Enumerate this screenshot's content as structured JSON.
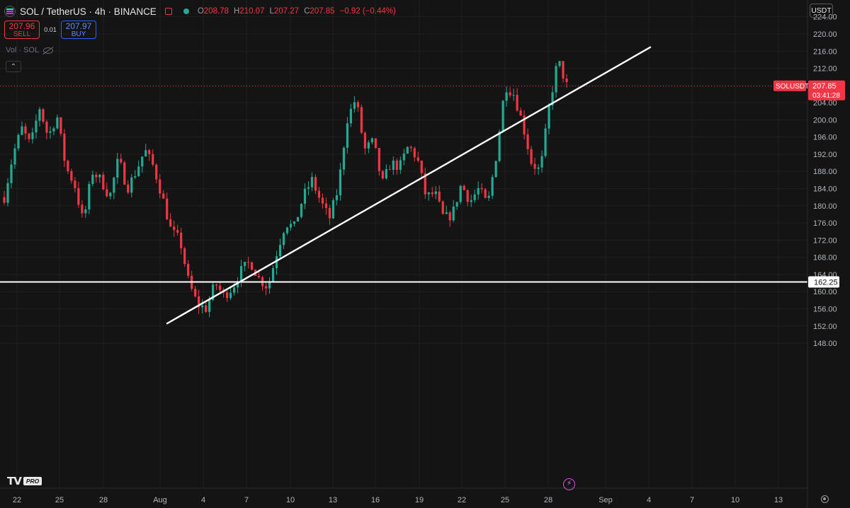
{
  "header": {
    "symbol_title": "SOL / TetherUS · 4h · BINANCE",
    "ohlc": {
      "o_label": "O",
      "o": "208.78",
      "h_label": "H",
      "h": "210.07",
      "l_label": "L",
      "l": "207.27",
      "c_label": "C",
      "c": "207.85",
      "change": "−0.92 (−0.44%)"
    }
  },
  "trade": {
    "sell_price": "207.96",
    "sell_label": "SELL",
    "spread": "0.01",
    "buy_price": "207.97",
    "buy_label": "BUY"
  },
  "indicator": {
    "volume_label": "Vol · SOL"
  },
  "currency_button": "USDT",
  "branding": {
    "logo": "TV",
    "badge": "PRO"
  },
  "icons": {
    "symbol": "solana-logo-icon",
    "flag": "flag-icon",
    "status": "market-open-dot-icon",
    "visibility": "eye-off-icon",
    "collapse": "chevron-up-icon",
    "settings": "gear-icon",
    "alert": "lightning-icon"
  },
  "colors": {
    "background": "#141414",
    "up": "#22ab94",
    "down": "#f23645",
    "buy": "#2962ff",
    "drawing": "#ffffff"
  },
  "chart_data": {
    "type": "candlestick",
    "symbol": "SOLUSDT",
    "interval": "4h",
    "y_ticks": [
      148,
      152,
      156,
      160,
      164,
      168,
      172,
      176,
      180,
      184,
      188,
      192,
      196,
      200,
      204,
      208,
      212,
      216,
      220,
      224
    ],
    "y_tick_labels": [
      "148.00",
      "152.00",
      "156.00",
      "160.00",
      "164.00",
      "168.00",
      "172.00",
      "176.00",
      "180.00",
      "184.00",
      "188.00",
      "192.00",
      "196.00",
      "200.00",
      "204.00",
      "208.00",
      "212.00",
      "216.00",
      "220.00",
      "224.00"
    ],
    "ylim": [
      146,
      226
    ],
    "x_tick_labels": [
      "22",
      "25",
      "28",
      "Aug",
      "4",
      "7",
      "10",
      "13",
      "16",
      "19",
      "22",
      "25",
      "28",
      "Sep",
      "4",
      "7",
      "10",
      "13"
    ],
    "last_price": {
      "symbol_label": "SOLUSDT",
      "value": 207.85,
      "value_label": "207.85",
      "countdown": "03:41:28"
    },
    "horizontal_line": {
      "value": 162.25,
      "label": "162.25"
    },
    "trendline": {
      "start": [
        "Aug 2",
        152.6
      ],
      "end": [
        "Sep 4",
        216.9
      ]
    },
    "path": [
      [
        0,
        182
      ],
      [
        2,
        192
      ],
      [
        4,
        198
      ],
      [
        6,
        194
      ],
      [
        8,
        203
      ],
      [
        10,
        196
      ],
      [
        12,
        201
      ],
      [
        14,
        189
      ],
      [
        16,
        185
      ],
      [
        18,
        176
      ],
      [
        20,
        188
      ],
      [
        22,
        186
      ],
      [
        24,
        182
      ],
      [
        26,
        191
      ],
      [
        28,
        184
      ],
      [
        30,
        188
      ],
      [
        32,
        193
      ],
      [
        34,
        189
      ],
      [
        36,
        182
      ],
      [
        38,
        174
      ],
      [
        40,
        172
      ],
      [
        42,
        162
      ],
      [
        44,
        157
      ],
      [
        46,
        156
      ],
      [
        48,
        162
      ],
      [
        50,
        159
      ],
      [
        52,
        161
      ],
      [
        54,
        165
      ],
      [
        56,
        167
      ],
      [
        58,
        163
      ],
      [
        60,
        161
      ],
      [
        62,
        169
      ],
      [
        64,
        176
      ],
      [
        66,
        175
      ],
      [
        68,
        182
      ],
      [
        70,
        186
      ],
      [
        72,
        181
      ],
      [
        74,
        177
      ],
      [
        76,
        184
      ],
      [
        78,
        200
      ],
      [
        80,
        205
      ],
      [
        82,
        193
      ],
      [
        84,
        195
      ],
      [
        86,
        185
      ],
      [
        88,
        190
      ],
      [
        90,
        189
      ],
      [
        92,
        194
      ],
      [
        94,
        191
      ],
      [
        96,
        182
      ],
      [
        98,
        183
      ],
      [
        100,
        177
      ],
      [
        102,
        178
      ],
      [
        104,
        185
      ],
      [
        106,
        181
      ],
      [
        108,
        184
      ],
      [
        110,
        180
      ],
      [
        112,
        192
      ],
      [
        114,
        208
      ],
      [
        116,
        206
      ],
      [
        118,
        199
      ],
      [
        120,
        190
      ],
      [
        122,
        188
      ],
      [
        124,
        203
      ],
      [
        126,
        214
      ],
      [
        128,
        208
      ]
    ],
    "index_range": [
      0,
      128
    ]
  }
}
